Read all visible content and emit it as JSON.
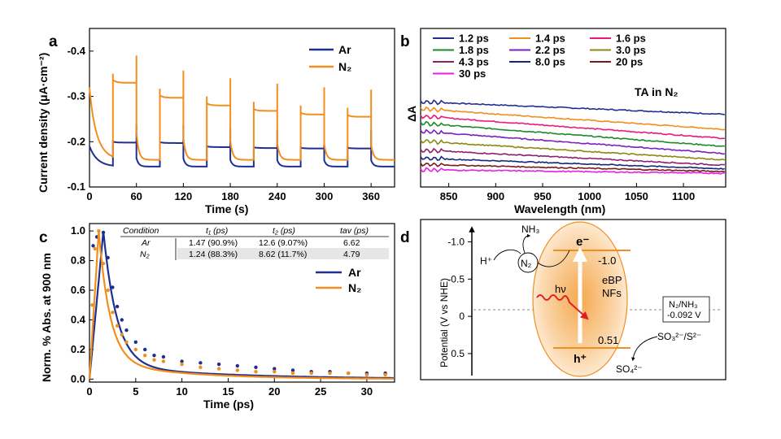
{
  "panels": {
    "a": {
      "label": "a",
      "ylabel": "Current density (μA·cm⁻²)",
      "xlabel": "Time (s)",
      "legend": [
        "Ar",
        "N₂"
      ]
    },
    "b": {
      "label": "b",
      "ylabel": "ΔA",
      "xlabel": "Wavelength (nm)",
      "annotation": "TA in N₂"
    },
    "c": {
      "label": "c",
      "ylabel": "Norm. % Abs. at 900 nm",
      "xlabel": "Time (ps)",
      "legend": [
        "Ar",
        "N₂"
      ],
      "table": {
        "headers": [
          "Condition",
          "t₁ (ps)",
          "t₂ (ps)",
          "tav (ps)"
        ],
        "rows": [
          [
            "Ar",
            "1.47 (90.9%)",
            "12.6 (9.07%)",
            "6.62"
          ],
          [
            "N₂",
            "1.24 (88.3%)",
            "8.62 (11.7%)",
            "4.79"
          ]
        ]
      }
    },
    "d": {
      "label": "d",
      "ylabel": "Potential (V vs NHE)",
      "ticks": [
        "-1.0",
        "-0.5",
        "0",
        "0.5"
      ],
      "labels": {
        "nh3": "NH₃",
        "hplus": "H⁺",
        "n2": "N₂",
        "electron": "e⁻",
        "cb": "-1.0",
        "material": "eBP",
        "material2": "NFs",
        "hv": "hν",
        "vb": "0.51",
        "hole": "h⁺",
        "redox": "N₂/NH₃",
        "redox_v": "-0.092 V",
        "sulfite": "SO₃²⁻/S²⁻",
        "sulfate": "SO₄²⁻"
      }
    }
  },
  "colors": {
    "ar": "#1f2f8f",
    "n2": "#f28e1c"
  },
  "chart_data": [
    {
      "type": "line",
      "title": "",
      "xlabel": "Time (s)",
      "ylabel": "Current density (μA·cm⁻²)",
      "xlim": [
        0,
        390
      ],
      "ylim": [
        -0.45,
        -0.1
      ],
      "y_inverted": true,
      "x_ticks": [
        "0",
        "60",
        "120",
        "180",
        "240",
        "300",
        "360"
      ],
      "y_ticks": [
        "-0.4",
        "-0.3",
        "-0.2",
        "-0.1"
      ],
      "light_on_times": [
        30,
        90,
        150,
        210,
        270,
        330
      ],
      "light_off_times": [
        60,
        120,
        180,
        240,
        300,
        360
      ],
      "series": [
        {
          "name": "Ar",
          "dark_level": -0.145,
          "light_on_levels": [
            -0.198,
            -0.197,
            -0.188,
            -0.186,
            -0.185,
            -0.185
          ],
          "start": -0.195
        },
        {
          "name": "N₂",
          "dark_level": -0.16,
          "light_on_levels": [
            -0.33,
            -0.297,
            -0.28,
            -0.268,
            -0.26,
            -0.255
          ],
          "start": -0.32
        }
      ]
    },
    {
      "type": "line",
      "title": "",
      "xlabel": "Wavelength (nm)",
      "ylabel": "ΔA",
      "xlim": [
        820,
        1145
      ],
      "x_ticks": [
        "850",
        "900",
        "950",
        "1000",
        "1050",
        "1100"
      ],
      "series": [
        {
          "name": "1.2 ps",
          "color": "#1f2f8f",
          "start": 0.88,
          "end": 0.74
        },
        {
          "name": "1.4 ps",
          "color": "#f28e1c",
          "start": 0.8,
          "end": 0.57
        },
        {
          "name": "1.6 ps",
          "color": "#e8197b",
          "start": 0.72,
          "end": 0.47
        },
        {
          "name": "1.8 ps",
          "color": "#1b8a2a",
          "start": 0.64,
          "end": 0.38
        },
        {
          "name": "2.2 ps",
          "color": "#7b1fbf",
          "start": 0.55,
          "end": 0.3
        },
        {
          "name": "3.0 ps",
          "color": "#8a8a12",
          "start": 0.44,
          "end": 0.23
        },
        {
          "name": "4.3 ps",
          "color": "#8e1f6e",
          "start": 0.34,
          "end": 0.17
        },
        {
          "name": "8.0 ps",
          "color": "#16267a",
          "start": 0.25,
          "end": 0.13
        },
        {
          "name": "20 ps",
          "color": "#7a1a1a",
          "start": 0.18,
          "end": 0.1
        },
        {
          "name": "30 ps",
          "color": "#e81ee0",
          "start": 0.12,
          "end": 0.08
        }
      ]
    },
    {
      "type": "scatter",
      "title": "",
      "xlabel": "Time (ps)",
      "ylabel": "Norm. % Abs. at 900 nm",
      "xlim": [
        0,
        33
      ],
      "ylim": [
        -0.02,
        1.05
      ],
      "x_ticks": [
        "0",
        "5",
        "10",
        "15",
        "20",
        "25",
        "30"
      ],
      "y_ticks": [
        "0.0",
        "0.2",
        "0.4",
        "0.6",
        "0.8",
        "1.0"
      ],
      "series": [
        {
          "name": "Ar",
          "fit": {
            "t1": 1.47,
            "a1": 0.909,
            "t2": 12.6,
            "a2": 0.0907,
            "peak": 1.5
          },
          "points": [
            [
              0.4,
              0.9
            ],
            [
              0.8,
              0.96
            ],
            [
              1.5,
              0.99
            ],
            [
              2,
              0.82
            ],
            [
              2.5,
              0.62
            ],
            [
              3,
              0.49
            ],
            [
              3.5,
              0.4
            ],
            [
              4,
              0.33
            ],
            [
              5,
              0.25
            ],
            [
              6,
              0.2
            ],
            [
              7,
              0.16
            ],
            [
              8,
              0.15
            ],
            [
              10,
              0.12
            ],
            [
              12,
              0.11
            ],
            [
              14,
              0.1
            ],
            [
              16,
              0.09
            ],
            [
              18,
              0.08
            ],
            [
              20,
              0.07
            ],
            [
              22,
              0.06
            ],
            [
              24,
              0.05
            ],
            [
              26,
              0.05
            ],
            [
              28,
              0.04
            ],
            [
              30,
              0.04
            ],
            [
              32,
              0.04
            ]
          ]
        },
        {
          "name": "N₂",
          "fit": {
            "t1": 1.24,
            "a1": 0.883,
            "t2": 8.62,
            "a2": 0.117,
            "peak": 1.0
          },
          "points": [
            [
              0.3,
              0.5
            ],
            [
              0.6,
              0.88
            ],
            [
              1,
              1.0
            ],
            [
              1.5,
              0.78
            ],
            [
              2,
              0.6
            ],
            [
              2.5,
              0.45
            ],
            [
              3,
              0.36
            ],
            [
              3.5,
              0.3
            ],
            [
              4,
              0.25
            ],
            [
              5,
              0.2
            ],
            [
              6,
              0.16
            ],
            [
              7,
              0.13
            ],
            [
              8,
              0.12
            ],
            [
              10,
              0.1
            ],
            [
              12,
              0.08
            ],
            [
              14,
              0.07
            ],
            [
              16,
              0.06
            ],
            [
              18,
              0.05
            ],
            [
              20,
              0.05
            ],
            [
              22,
              0.04
            ],
            [
              24,
              0.04
            ],
            [
              26,
              0.04
            ],
            [
              28,
              0.04
            ],
            [
              30,
              0.03
            ],
            [
              32,
              0.03
            ]
          ]
        }
      ]
    },
    {
      "type": "diagram",
      "title": "",
      "ylabel": "Potential (V vs NHE)",
      "ylim": [
        -1.3,
        0.85
      ],
      "levels": {
        "cb": -1.0,
        "vb": 0.51,
        "redox_n2_nh3": -0.092
      }
    }
  ]
}
